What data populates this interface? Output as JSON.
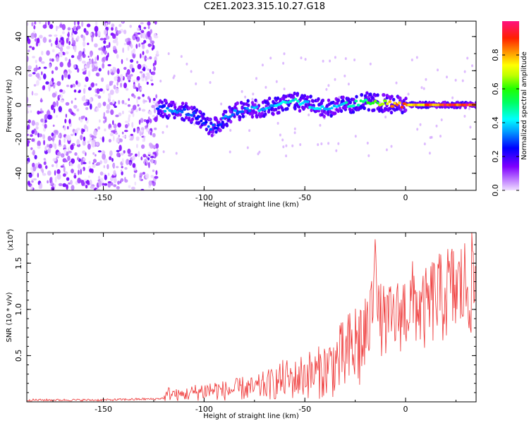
{
  "title": "C2E1.2023.315.10.27.G18",
  "chart_data": [
    {
      "type": "heatmap",
      "xlabel": "Height of straight line (km)",
      "ylabel": "Frequency (Hz)",
      "xlim": [
        -188,
        35
      ],
      "ylim": [
        -50,
        49
      ],
      "xticks": [
        "-150",
        "-100",
        "-50",
        "0"
      ],
      "yticks": [
        "-40",
        "-20",
        "0",
        "20",
        "40"
      ],
      "colorbar": {
        "label": "Normalized spectral amplitude",
        "range": [
          0,
          1
        ],
        "ticks": [
          "0.0",
          "0.2",
          "0.4",
          "0.6",
          "0.8"
        ]
      },
      "noise_region_x": [
        -188,
        -123
      ],
      "signal_trace": {
        "x": [
          -123,
          -115,
          -110,
          -105,
          -100,
          -97,
          -93,
          -90,
          -85,
          -80,
          -75,
          -70,
          -65,
          -60,
          -55,
          -50,
          -45,
          -40,
          -35,
          -30,
          -25,
          -20,
          -15,
          -10,
          -5,
          0,
          5,
          10,
          15,
          20,
          25,
          30,
          35
        ],
        "freq": [
          -2,
          -3,
          -4,
          -6,
          -10,
          -13,
          -12,
          -8,
          -4,
          -3,
          -2,
          -2,
          0,
          1,
          2,
          1,
          -1,
          -2,
          -1,
          0,
          1,
          2,
          1,
          1,
          0,
          0,
          0,
          0,
          0,
          0,
          0,
          0,
          0
        ],
        "amplitude": [
          0.3,
          0.4,
          0.35,
          0.3,
          0.3,
          0.3,
          0.3,
          0.35,
          0.35,
          0.35,
          0.4,
          0.4,
          0.4,
          0.45,
          0.45,
          0.45,
          0.4,
          0.4,
          0.4,
          0.45,
          0.5,
          0.55,
          0.65,
          0.8,
          0.85,
          0.85,
          0.85,
          0.9,
          0.9,
          0.95,
          0.95,
          1.0,
          1.0
        ]
      }
    },
    {
      "type": "line",
      "xlabel": "Height of straight line (km)",
      "ylabel": "SNR (10 * v/v)",
      "y_multiplier": "(x10",
      "y_multiplier_exp": "4",
      "y_multiplier_close": ")",
      "xlim": [
        -188,
        35
      ],
      "ylim": [
        0,
        1.83
      ],
      "xticks": [
        "-150",
        "-100",
        "-50",
        "0"
      ],
      "yticks": [
        "0.5",
        "1.0",
        "1.5"
      ],
      "color": "#ee3333",
      "x": [
        -188,
        -175,
        -160,
        -150,
        -140,
        -130,
        -125,
        -120,
        -117,
        -113,
        -110,
        -105,
        -100,
        -95,
        -90,
        -85,
        -80,
        -75,
        -70,
        -65,
        -60,
        -55,
        -50,
        -45,
        -40,
        -35,
        -30,
        -27,
        -25,
        -22,
        -20,
        -18,
        -16,
        -15,
        -14,
        -12,
        -10,
        -8,
        -5,
        -3,
        0,
        3,
        5,
        8,
        10,
        12,
        15,
        18,
        20,
        25,
        30,
        35
      ],
      "y": [
        0.02,
        0.02,
        0.02,
        0.02,
        0.025,
        0.03,
        0.03,
        0.04,
        0.1,
        0.07,
        0.08,
        0.1,
        0.12,
        0.13,
        0.12,
        0.13,
        0.15,
        0.14,
        0.18,
        0.2,
        0.25,
        0.24,
        0.3,
        0.3,
        0.35,
        0.42,
        0.48,
        0.55,
        0.6,
        0.65,
        0.7,
        0.8,
        1.2,
        1.82,
        0.9,
        0.9,
        0.85,
        0.88,
        0.9,
        0.95,
        1.0,
        1.05,
        1.1,
        0.95,
        1.0,
        1.05,
        1.15,
        1.1,
        1.2,
        1.2,
        1.25,
        1.28
      ]
    }
  ]
}
